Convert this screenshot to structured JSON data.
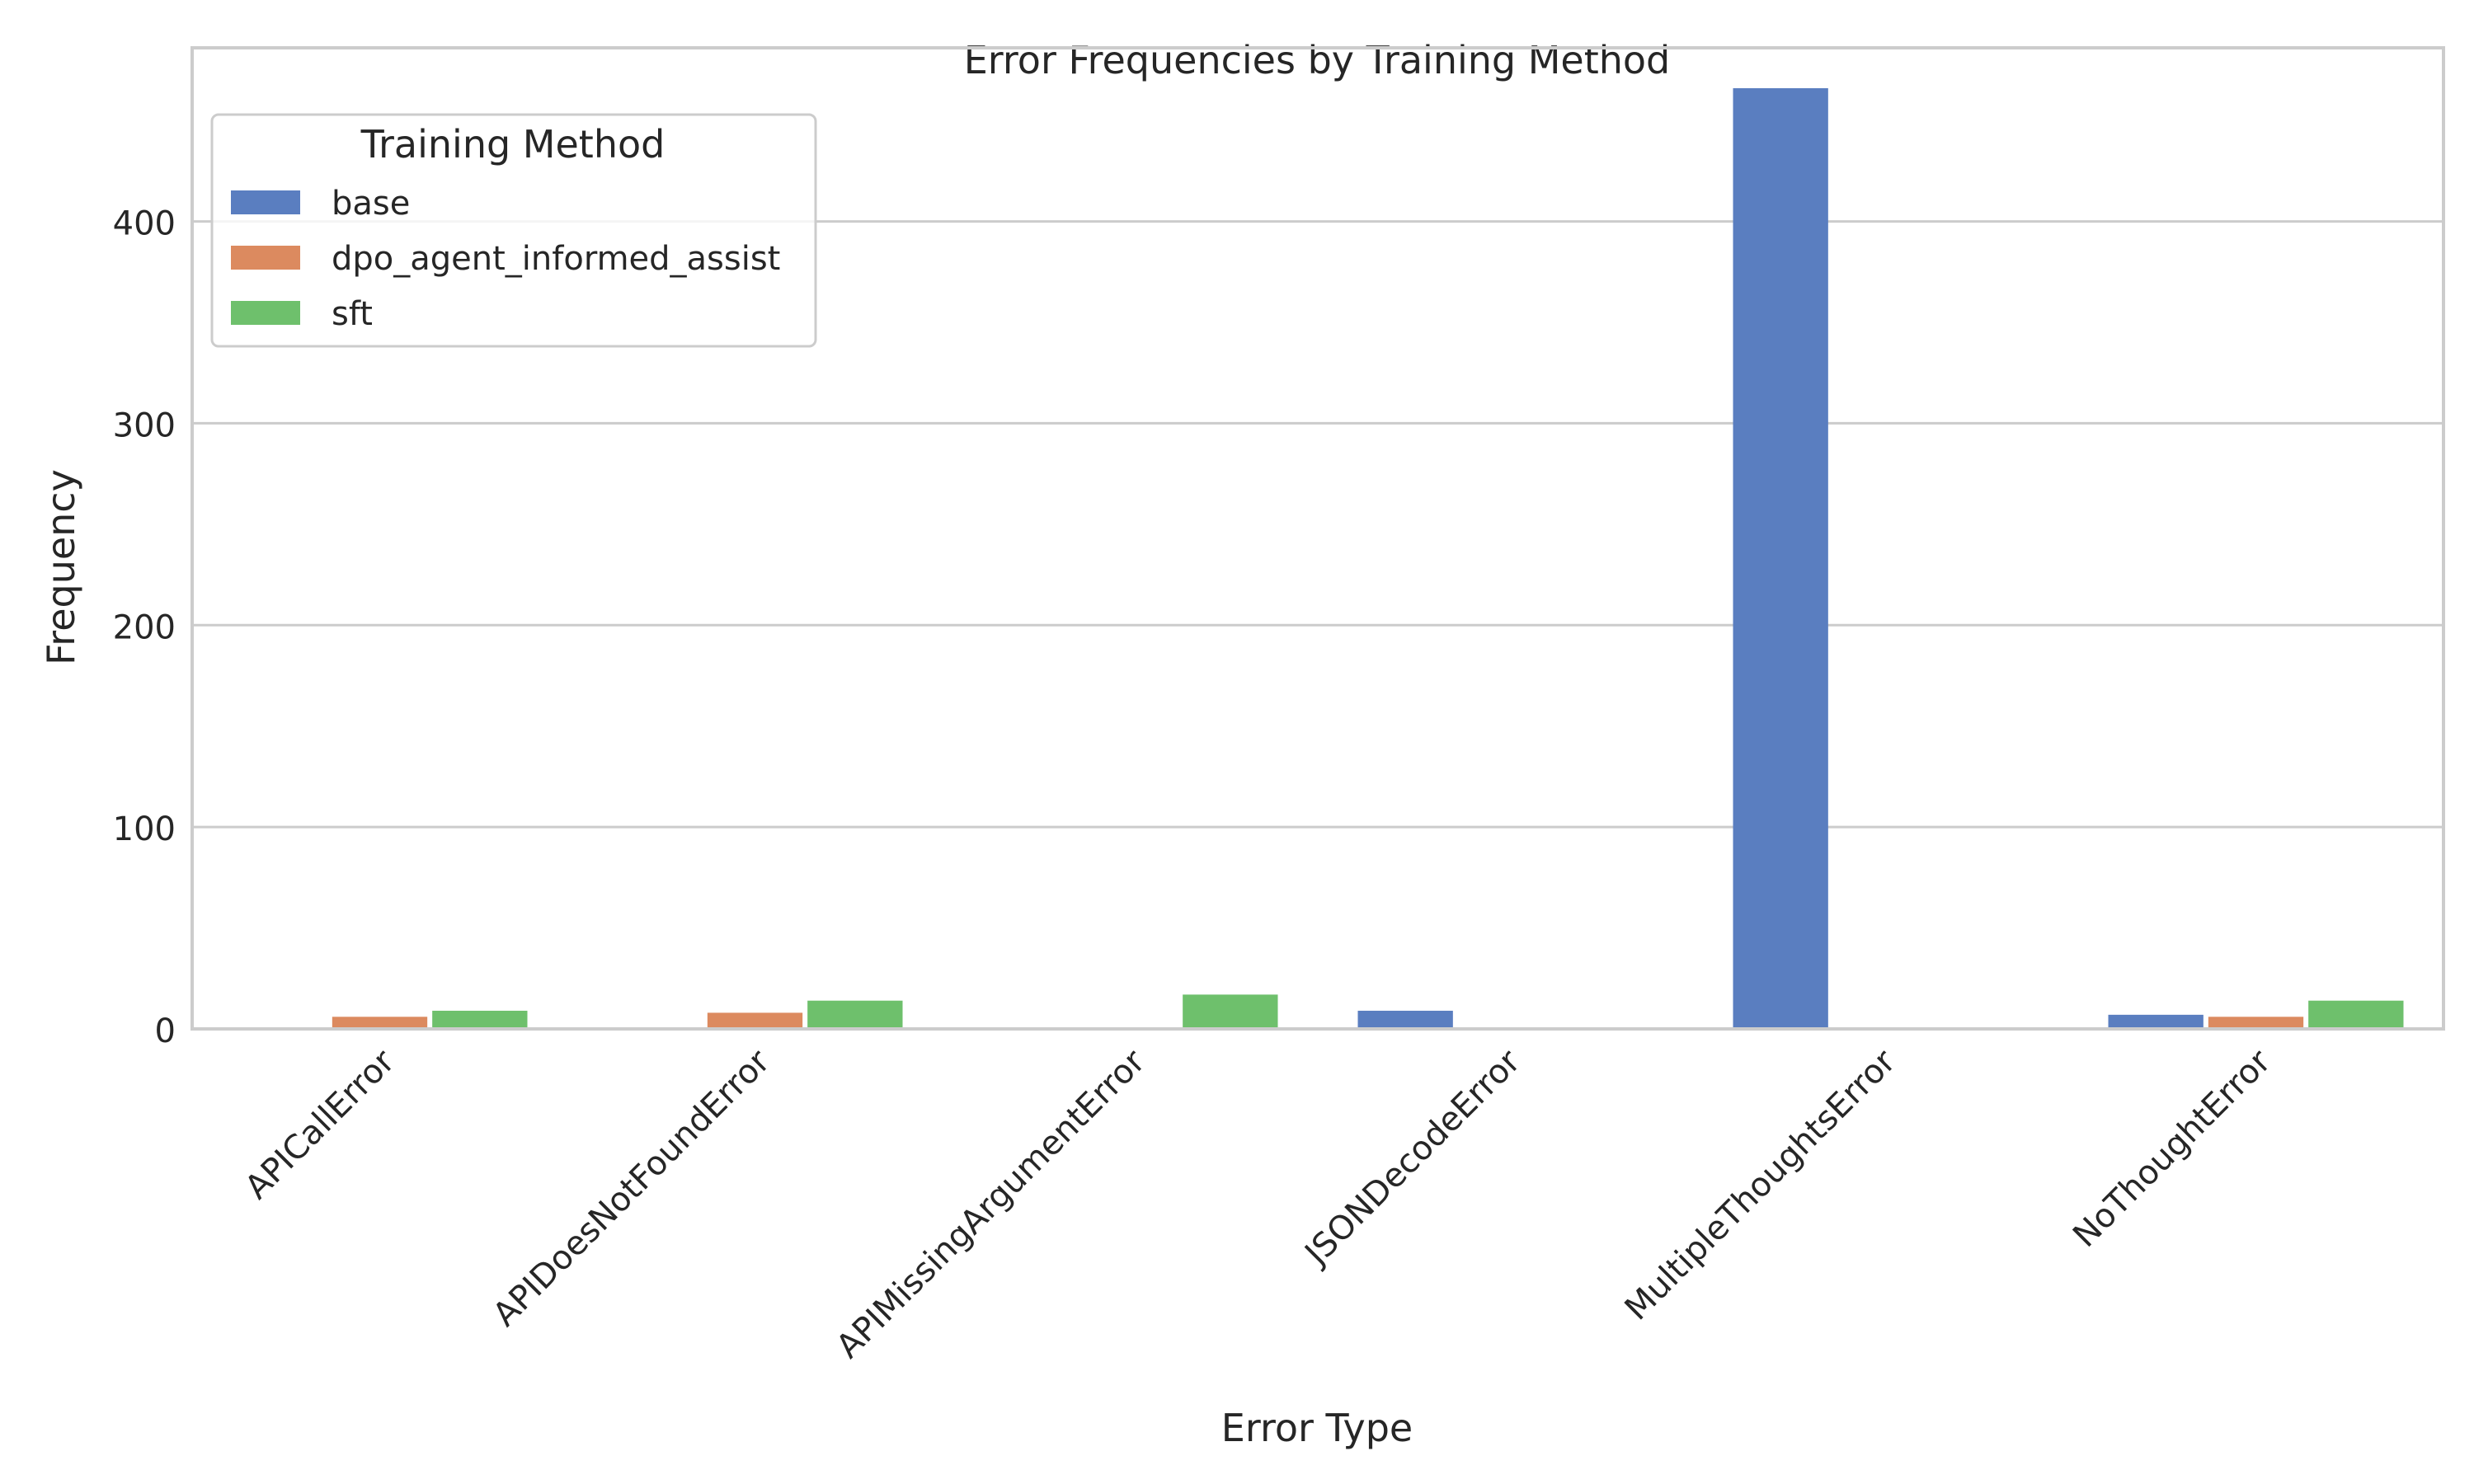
{
  "chart_data": {
    "type": "bar",
    "title": "Error Frequencies by Training Method",
    "xlabel": "Error Type",
    "ylabel": "Frequency",
    "ylim": [
      0,
      486
    ],
    "yticks": [
      0,
      100,
      200,
      300,
      400
    ],
    "grid": "horizontal",
    "legend": {
      "title": "Training Method",
      "placement": "top-left"
    },
    "categories": [
      "APICallError",
      "APIDoesNotFoundError",
      "APIMissingArgumentError",
      "JSONDecodeError",
      "MultipleThoughtsError",
      "NoThoughtError"
    ],
    "series": [
      {
        "name": "base",
        "color": "#5a7ec0",
        "values": [
          0,
          0,
          0,
          9,
          466,
          7
        ]
      },
      {
        "name": "dpo_agent_informed_assist",
        "color": "#dc8a5f",
        "values": [
          6,
          8,
          0,
          0,
          0,
          6
        ]
      },
      {
        "name": "sft",
        "color": "#6ec06c",
        "values": [
          9,
          14,
          17,
          0,
          0,
          14
        ]
      }
    ]
  }
}
